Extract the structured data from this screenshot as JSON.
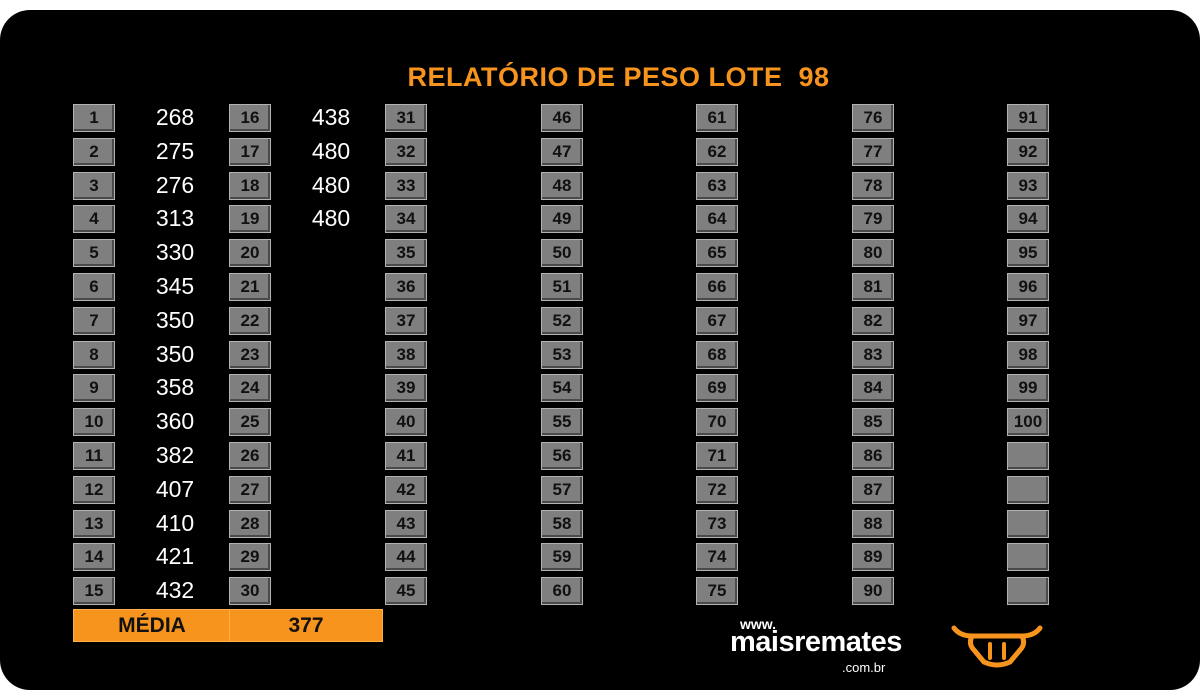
{
  "title": "RELATÓRIO DE PESO LOTE  98",
  "columns": [
    {
      "numbers": [
        "1",
        "2",
        "3",
        "4",
        "5",
        "6",
        "7",
        "8",
        "9",
        "10",
        "11",
        "12",
        "13",
        "14",
        "15"
      ],
      "weights": [
        "268",
        "275",
        "276",
        "313",
        "330",
        "345",
        "350",
        "350",
        "358",
        "360",
        "382",
        "407",
        "410",
        "421",
        "432"
      ]
    },
    {
      "numbers": [
        "16",
        "17",
        "18",
        "19",
        "20",
        "21",
        "22",
        "23",
        "24",
        "25",
        "26",
        "27",
        "28",
        "29",
        "30"
      ],
      "weights": [
        "438",
        "480",
        "480",
        "480",
        "",
        "",
        "",
        "",
        "",
        "",
        "",
        "",
        "",
        "",
        ""
      ]
    },
    {
      "numbers": [
        "31",
        "32",
        "33",
        "34",
        "35",
        "36",
        "37",
        "38",
        "39",
        "40",
        "41",
        "42",
        "43",
        "44",
        "45"
      ],
      "weights": [
        "",
        "",
        "",
        "",
        "",
        "",
        "",
        "",
        "",
        "",
        "",
        "",
        "",
        "",
        ""
      ]
    },
    {
      "numbers": [
        "46",
        "47",
        "48",
        "49",
        "50",
        "51",
        "52",
        "53",
        "54",
        "55",
        "56",
        "57",
        "58",
        "59",
        "60"
      ],
      "weights": [
        "",
        "",
        "",
        "",
        "",
        "",
        "",
        "",
        "",
        "",
        "",
        "",
        "",
        "",
        ""
      ]
    },
    {
      "numbers": [
        "61",
        "62",
        "63",
        "64",
        "65",
        "66",
        "67",
        "68",
        "69",
        "70",
        "71",
        "72",
        "73",
        "74",
        "75"
      ],
      "weights": [
        "",
        "",
        "",
        "",
        "",
        "",
        "",
        "",
        "",
        "",
        "",
        "",
        "",
        "",
        ""
      ]
    },
    {
      "numbers": [
        "76",
        "77",
        "78",
        "79",
        "80",
        "81",
        "82",
        "83",
        "84",
        "85",
        "86",
        "87",
        "88",
        "89",
        "90"
      ],
      "weights": [
        "",
        "",
        "",
        "",
        "",
        "",
        "",
        "",
        "",
        "",
        "",
        "",
        "",
        "",
        ""
      ]
    },
    {
      "numbers": [
        "91",
        "92",
        "93",
        "94",
        "95",
        "96",
        "97",
        "98",
        "99",
        "100",
        "",
        "",
        "",
        "",
        ""
      ],
      "weights": [
        "",
        "",
        "",
        "",
        "",
        "",
        "",
        "",
        "",
        "",
        "",
        "",
        "",
        "",
        ""
      ]
    }
  ],
  "average": {
    "label": "MÉDIA",
    "value": "377"
  },
  "logo": {
    "www": "www.",
    "brand": "maisremates",
    "domain": ".com.br"
  },
  "colors": {
    "accent": "#f7941d",
    "background": "#000000",
    "cell": "#7f7f7f"
  },
  "icons": {
    "logo": "bull-head-icon"
  }
}
